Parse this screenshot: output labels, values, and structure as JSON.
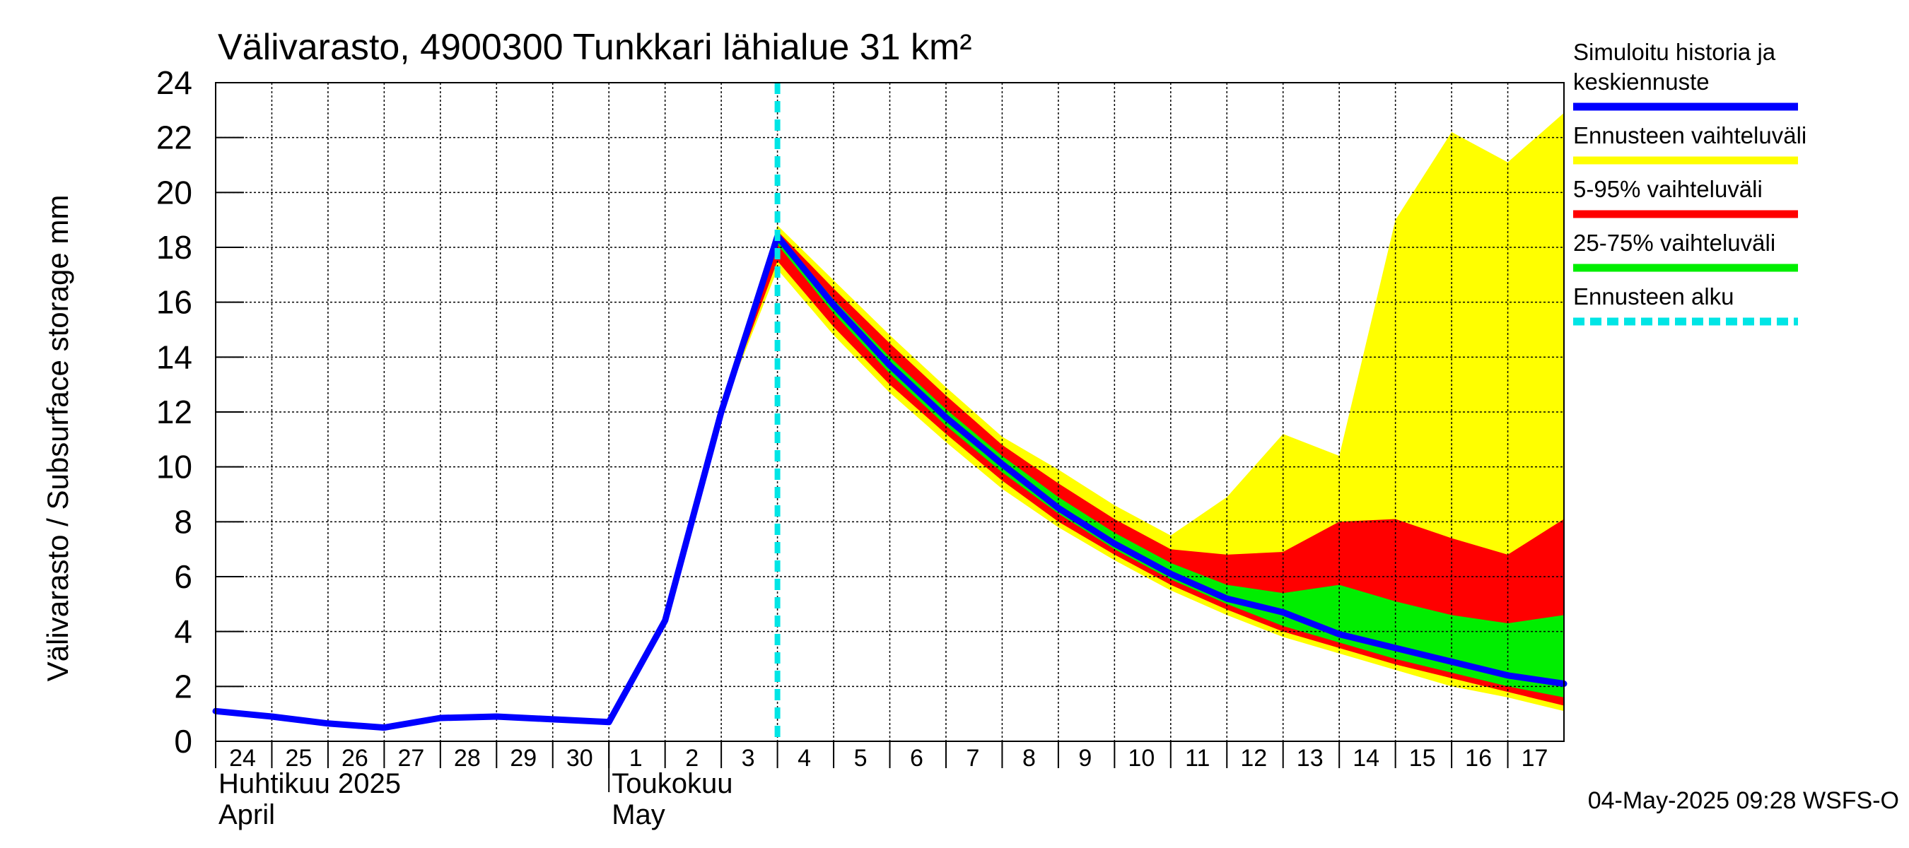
{
  "chart_data": {
    "type": "area",
    "title": "Välivarasto, 4900300 Tunkkari lähialue 31 km²",
    "ylabel": "Välivarasto / Subsurface storage  mm",
    "ylim": [
      0,
      24
    ],
    "yticks": [
      0,
      2,
      4,
      6,
      8,
      10,
      12,
      14,
      16,
      18,
      20,
      22,
      24
    ],
    "x_start": "2025-04-24",
    "x_end": "2025-05-18",
    "day_labels": [
      {
        "date": "2025-04-24",
        "label": "24"
      },
      {
        "date": "2025-04-25",
        "label": "25"
      },
      {
        "date": "2025-04-26",
        "label": "26"
      },
      {
        "date": "2025-04-27",
        "label": "27"
      },
      {
        "date": "2025-04-28",
        "label": "28"
      },
      {
        "date": "2025-04-29",
        "label": "29"
      },
      {
        "date": "2025-04-30",
        "label": "30"
      },
      {
        "date": "2025-05-01",
        "label": "1"
      },
      {
        "date": "2025-05-02",
        "label": "2"
      },
      {
        "date": "2025-05-03",
        "label": "3"
      },
      {
        "date": "2025-05-04",
        "label": "4"
      },
      {
        "date": "2025-05-05",
        "label": "5"
      },
      {
        "date": "2025-05-06",
        "label": "6"
      },
      {
        "date": "2025-05-07",
        "label": "7"
      },
      {
        "date": "2025-05-08",
        "label": "8"
      },
      {
        "date": "2025-05-09",
        "label": "9"
      },
      {
        "date": "2025-05-10",
        "label": "10"
      },
      {
        "date": "2025-05-11",
        "label": "11"
      },
      {
        "date": "2025-05-12",
        "label": "12"
      },
      {
        "date": "2025-05-13",
        "label": "13"
      },
      {
        "date": "2025-05-14",
        "label": "14"
      },
      {
        "date": "2025-05-15",
        "label": "15"
      },
      {
        "date": "2025-05-16",
        "label": "16"
      },
      {
        "date": "2025-05-17",
        "label": "17"
      }
    ],
    "month_labels": [
      {
        "date": "2025-04-24",
        "line1": "Huhtikuu  2025",
        "line2": "April"
      },
      {
        "date": "2025-05-01",
        "line1": "Toukokuu",
        "line2": "May"
      }
    ],
    "forecast_start": "2025-05-04",
    "legend_position": "right",
    "legend": [
      {
        "label_lines": [
          "Simuloitu historia ja",
          "keskiennuste"
        ],
        "color": "#0000ff",
        "style": "solid"
      },
      {
        "label_lines": [
          "Ennusteen vaihteluväli"
        ],
        "color": "#ffff00",
        "style": "solid"
      },
      {
        "label_lines": [
          "5-95% vaihteluväli"
        ],
        "color": "#ff0000",
        "style": "solid"
      },
      {
        "label_lines": [
          "25-75% vaihteluväli"
        ],
        "color": "#00ee00",
        "style": "solid"
      },
      {
        "label_lines": [
          "Ennusteen alku"
        ],
        "color": "#00e5e5",
        "style": "dashed"
      }
    ],
    "footer": "04-May-2025 09:28 WSFS-O",
    "series": [
      {
        "name": "Simuloitu historia ja keskiennuste",
        "kind": "line",
        "color": "#0000ff",
        "points": [
          [
            "2025-04-24",
            1.1
          ],
          [
            "2025-04-25",
            0.9
          ],
          [
            "2025-04-26",
            0.65
          ],
          [
            "2025-04-27",
            0.5
          ],
          [
            "2025-04-28",
            0.85
          ],
          [
            "2025-04-29",
            0.9
          ],
          [
            "2025-04-30",
            0.8
          ],
          [
            "2025-05-01",
            0.7
          ],
          [
            "2025-05-02",
            4.4
          ],
          [
            "2025-05-03",
            12.0
          ],
          [
            "2025-05-04",
            18.4
          ],
          [
            "2025-05-05",
            15.9
          ],
          [
            "2025-05-06",
            13.7
          ],
          [
            "2025-05-07",
            11.8
          ],
          [
            "2025-05-08",
            10.1
          ],
          [
            "2025-05-09",
            8.5
          ],
          [
            "2025-05-10",
            7.2
          ],
          [
            "2025-05-11",
            6.1
          ],
          [
            "2025-05-12",
            5.2
          ],
          [
            "2025-05-13",
            4.7
          ],
          [
            "2025-05-14",
            3.9
          ],
          [
            "2025-05-15",
            3.4
          ],
          [
            "2025-05-16",
            2.9
          ],
          [
            "2025-05-17",
            2.4
          ],
          [
            "2025-05-18",
            2.1
          ]
        ]
      },
      {
        "name": "Ennusteen vaihteluväli",
        "kind": "band",
        "color": "#ffff00",
        "dates": [
          "2025-05-03",
          "2025-05-04",
          "2025-05-05",
          "2025-05-06",
          "2025-05-07",
          "2025-05-08",
          "2025-05-09",
          "2025-05-10",
          "2025-05-11",
          "2025-05-12",
          "2025-05-13",
          "2025-05-14",
          "2025-05-15",
          "2025-05-16",
          "2025-05-17",
          "2025-05-18"
        ],
        "upper": [
          12.0,
          18.8,
          16.8,
          14.8,
          12.9,
          11.1,
          9.9,
          8.6,
          7.5,
          8.9,
          11.2,
          10.4,
          19.0,
          22.2,
          21.1,
          22.9
        ],
        "lower": [
          12.0,
          17.2,
          14.8,
          12.7,
          10.9,
          9.2,
          7.8,
          6.6,
          5.5,
          4.6,
          3.8,
          3.2,
          2.6,
          2.0,
          1.6,
          1.1
        ]
      },
      {
        "name": "5-95% vaihteluväli",
        "kind": "band",
        "color": "#ff0000",
        "dates": [
          "2025-05-03",
          "2025-05-04",
          "2025-05-05",
          "2025-05-06",
          "2025-05-07",
          "2025-05-08",
          "2025-05-09",
          "2025-05-10",
          "2025-05-11",
          "2025-05-12",
          "2025-05-13",
          "2025-05-14",
          "2025-05-15",
          "2025-05-16",
          "2025-05-17",
          "2025-05-18"
        ],
        "upper": [
          12.0,
          18.6,
          16.5,
          14.5,
          12.6,
          10.8,
          9.4,
          8.1,
          7.0,
          6.8,
          6.9,
          8.0,
          8.1,
          7.4,
          6.8,
          8.1
        ],
        "lower": [
          12.0,
          17.5,
          15.1,
          13.0,
          11.2,
          9.5,
          8.0,
          6.8,
          5.7,
          4.8,
          4.0,
          3.4,
          2.8,
          2.3,
          1.8,
          1.3
        ]
      },
      {
        "name": "25-75% vaihteluväli",
        "kind": "band",
        "color": "#00ee00",
        "dates": [
          "2025-05-03",
          "2025-05-04",
          "2025-05-05",
          "2025-05-06",
          "2025-05-07",
          "2025-05-08",
          "2025-05-09",
          "2025-05-10",
          "2025-05-11",
          "2025-05-12",
          "2025-05-13",
          "2025-05-14",
          "2025-05-15",
          "2025-05-16",
          "2025-05-17",
          "2025-05-18"
        ],
        "upper": [
          12.0,
          18.5,
          16.1,
          14.0,
          12.1,
          10.4,
          8.9,
          7.6,
          6.5,
          5.7,
          5.4,
          5.7,
          5.1,
          4.6,
          4.3,
          4.6
        ],
        "lower": [
          12.0,
          18.1,
          15.6,
          13.4,
          11.5,
          9.8,
          8.3,
          7.0,
          5.9,
          5.0,
          4.2,
          3.6,
          3.0,
          2.5,
          2.0,
          1.6
        ]
      }
    ]
  }
}
